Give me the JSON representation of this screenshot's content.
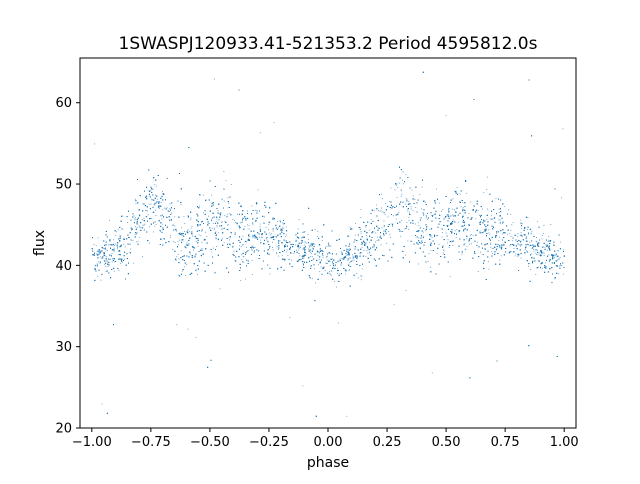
{
  "chart_data": {
    "type": "scatter",
    "title": "1SWASPJ120933.41-521353.2 Period 4595812.0s",
    "xlabel": "phase",
    "ylabel": "flux",
    "xlim": [
      -1.05,
      1.05
    ],
    "ylim": [
      20.0,
      65.5
    ],
    "xticks": [
      -1.0,
      -0.75,
      -0.5,
      -0.25,
      0.0,
      0.25,
      0.5,
      0.75,
      1.0
    ],
    "xtick_labels": [
      "−1.00",
      "−0.75",
      "−0.50",
      "−0.25",
      "0.00",
      "0.25",
      "0.50",
      "0.75",
      "1.00"
    ],
    "yticks": [
      20,
      30,
      40,
      50,
      60
    ],
    "ytick_labels": [
      "20",
      "30",
      "40",
      "50",
      "60"
    ],
    "grid": false,
    "legend": "none",
    "series": [
      {
        "color": "#1f77b4",
        "marker": "dot",
        "x": [
          -1.0,
          -0.95,
          -0.9,
          -0.85,
          -0.8,
          -0.75,
          -0.7,
          -0.65,
          -0.6,
          -0.55,
          -0.5,
          -0.45,
          -0.4,
          -0.35,
          -0.3,
          -0.25,
          -0.2,
          -0.15,
          -0.1,
          -0.05,
          0.0,
          0.05,
          0.1,
          0.15,
          0.2,
          0.25,
          0.3,
          0.35,
          0.4,
          0.45,
          0.5,
          0.55,
          0.6,
          0.65,
          0.7,
          0.75,
          0.8,
          0.85,
          0.9,
          0.95,
          1.0
        ],
        "y": [
          41.0,
          41.5,
          42.0,
          43.0,
          45.5,
          47.5,
          46.5,
          44.5,
          43.0,
          43.5,
          44.5,
          45.5,
          44.0,
          42.5,
          44.0,
          43.5,
          43.0,
          42.5,
          42.0,
          41.5,
          40.5,
          40.5,
          41.5,
          42.5,
          44.0,
          46.0,
          47.5,
          46.5,
          44.5,
          44.0,
          45.0,
          46.0,
          45.5,
          44.0,
          44.5,
          44.0,
          43.0,
          42.5,
          42.0,
          41.5,
          41.0
        ],
        "spread": [
          3.5,
          4.0,
          4.0,
          4.5,
          5.0,
          5.5,
          6.0,
          6.0,
          6.0,
          6.0,
          6.0,
          6.0,
          6.0,
          5.5,
          5.0,
          4.5,
          4.0,
          4.0,
          3.5,
          3.5,
          3.5,
          3.5,
          4.0,
          4.5,
          5.0,
          5.5,
          6.0,
          6.0,
          6.0,
          6.0,
          6.0,
          6.0,
          6.0,
          5.5,
          5.5,
          5.0,
          4.5,
          4.0,
          4.0,
          3.5,
          3.5
        ]
      }
    ]
  }
}
